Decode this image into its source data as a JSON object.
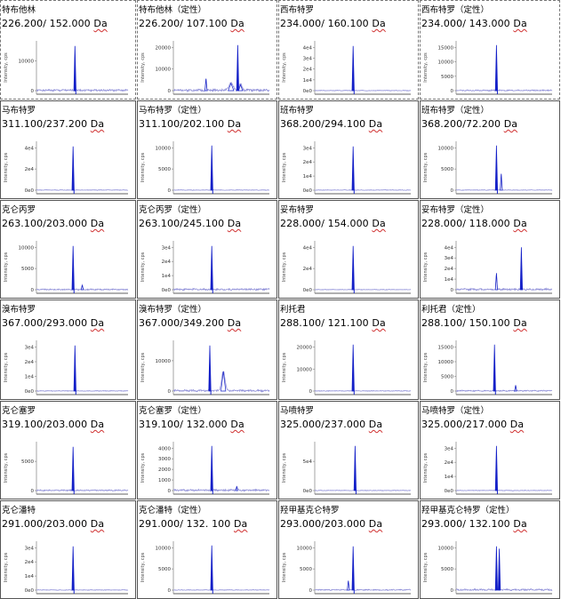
{
  "colors": {
    "peak": "#1420c8",
    "trace": "#8f8fd8",
    "axis": "#808080",
    "border": "#555555"
  },
  "y_axis_label": "Intensity, cps",
  "chart_data": [
    {
      "type": "line",
      "compound": "特布他林",
      "transition": "226.200/ 152.000",
      "unit": "Da",
      "yticks": [
        "0",
        "10000"
      ],
      "peaks": [
        {
          "x": 0.42,
          "h": 0.93,
          "w": 0.006
        }
      ],
      "dips": [
        0.43
      ],
      "noise": 0.03
    },
    {
      "type": "line",
      "compound": "特布他林（定性）",
      "transition": "226.200/ 107.100",
      "unit": "Da",
      "yticks": [
        "0",
        "10000",
        "20000"
      ],
      "peaks": [
        {
          "x": 0.34,
          "h": 0.25,
          "w": 0.006
        },
        {
          "x": 0.6,
          "h": 0.15,
          "w": 0.03
        },
        {
          "x": 0.67,
          "h": 0.95,
          "w": 0.008
        },
        {
          "x": 0.7,
          "h": 0.12,
          "w": 0.02
        }
      ],
      "dips": [],
      "noise": 0.04
    },
    {
      "type": "line",
      "compound": "西布特罗",
      "transition": "234.000/ 160.100",
      "unit": "Da",
      "yticks": [
        "0e0",
        "1e4",
        "2e4",
        "3e4",
        "4e4"
      ],
      "peaks": [
        {
          "x": 0.4,
          "h": 0.93,
          "w": 0.006
        }
      ],
      "dips": [
        0.41
      ],
      "noise": 0.01
    },
    {
      "type": "line",
      "compound": "西布特罗（定性）",
      "transition": "234.000/ 143.000",
      "unit": "Da",
      "yticks": [
        "0",
        "5000",
        "10000",
        "15000"
      ],
      "peaks": [
        {
          "x": 0.42,
          "h": 0.95,
          "w": 0.006
        }
      ],
      "dips": [
        0.43
      ],
      "noise": 0.02
    },
    {
      "type": "line",
      "compound": "马布特罗",
      "transition": "311.100/237.200",
      "unit": "Da",
      "yticks": [
        "0e0",
        "2e4",
        "4e4"
      ],
      "peaks": [
        {
          "x": 0.4,
          "h": 0.93,
          "w": 0.006
        }
      ],
      "dips": [
        0.41
      ],
      "noise": 0.01
    },
    {
      "type": "line",
      "compound": "马布特罗（定性）",
      "transition": "311.100/202.100",
      "unit": "Da",
      "yticks": [
        "0",
        "5000",
        "10000"
      ],
      "peaks": [
        {
          "x": 0.4,
          "h": 0.95,
          "w": 0.006
        }
      ],
      "dips": [
        0.41
      ],
      "noise": 0.01
    },
    {
      "type": "line",
      "compound": "班布特罗",
      "transition": "368.200/294.100",
      "unit": "Da",
      "yticks": [
        "0e0",
        "1e4",
        "2e4",
        "3e4"
      ],
      "peaks": [
        {
          "x": 0.4,
          "h": 0.93,
          "w": 0.006
        }
      ],
      "dips": [
        0.41
      ],
      "noise": 0.01
    },
    {
      "type": "line",
      "compound": "班布特罗（定性）",
      "transition": "368.200/72.200",
      "unit": "Da",
      "yticks": [
        "0",
        "5000",
        "10000"
      ],
      "peaks": [
        {
          "x": 0.42,
          "h": 0.95,
          "w": 0.006
        },
        {
          "x": 0.47,
          "h": 0.35,
          "w": 0.005
        }
      ],
      "dips": [
        0.43
      ],
      "noise": 0.01
    },
    {
      "type": "line",
      "compound": "克仑丙罗",
      "transition": "263.100/203.000",
      "unit": "Da",
      "yticks": [
        "0",
        "5000",
        "10000"
      ],
      "peaks": [
        {
          "x": 0.4,
          "h": 0.93,
          "w": 0.006
        },
        {
          "x": 0.5,
          "h": 0.1,
          "w": 0.006
        }
      ],
      "dips": [
        0.41
      ],
      "noise": 0.02
    },
    {
      "type": "line",
      "compound": "克仑丙罗（定性）",
      "transition": "263.100/245.100",
      "unit": "Da",
      "yticks": [
        "0e0",
        "1e4",
        "2e4",
        "3e4"
      ],
      "peaks": [
        {
          "x": 0.4,
          "h": 0.93,
          "w": 0.006
        }
      ],
      "dips": [
        0.41
      ],
      "noise": 0.03
    },
    {
      "type": "line",
      "compound": "妥布特罗",
      "transition": "228.000/ 154.000",
      "unit": "Da",
      "yticks": [
        "0e0",
        "2e4",
        "4e4"
      ],
      "peaks": [
        {
          "x": 0.4,
          "h": 0.93,
          "w": 0.006
        }
      ],
      "dips": [
        0.41
      ],
      "noise": 0.01
    },
    {
      "type": "line",
      "compound": "妥布特罗（定性）",
      "transition": "228.000/ 118.000",
      "unit": "Da",
      "yticks": [
        "0",
        "1e4",
        "2e4",
        "3e4",
        "4e4"
      ],
      "peaks": [
        {
          "x": 0.42,
          "h": 0.35,
          "w": 0.006
        },
        {
          "x": 0.68,
          "h": 0.9,
          "w": 0.01
        }
      ],
      "dips": [],
      "noise": 0.03
    },
    {
      "type": "line",
      "compound": "溴布特罗",
      "transition": "367.000/293.000",
      "unit": "Da",
      "yticks": [
        "0e0",
        "1e4",
        "2e4",
        "3e4"
      ],
      "peaks": [
        {
          "x": 0.42,
          "h": 0.93,
          "w": 0.006
        }
      ],
      "dips": [
        0.43
      ],
      "noise": 0.01
    },
    {
      "type": "line",
      "compound": "溴布特罗（定性）",
      "transition": "367.000/349.200",
      "unit": "Da",
      "yticks": [
        "0",
        "10000"
      ],
      "peaks": [
        {
          "x": 0.38,
          "h": 0.93,
          "w": 0.006
        },
        {
          "x": 0.52,
          "h": 0.4,
          "w": 0.025
        }
      ],
      "dips": [
        0.39
      ],
      "noise": 0.03
    },
    {
      "type": "line",
      "compound": "利托君",
      "transition": "288.100/ 121.100",
      "unit": "Da",
      "yticks": [
        "0",
        "10000",
        "20000"
      ],
      "peaks": [
        {
          "x": 0.4,
          "h": 0.95,
          "w": 0.006
        }
      ],
      "dips": [
        0.41
      ],
      "noise": 0.01
    },
    {
      "type": "line",
      "compound": "利托君（定性）",
      "transition": "288.100/ 150.100",
      "unit": "Da",
      "yticks": [
        "0",
        "5000",
        "10000",
        "15000"
      ],
      "peaks": [
        {
          "x": 0.4,
          "h": 0.95,
          "w": 0.006
        },
        {
          "x": 0.62,
          "h": 0.12,
          "w": 0.006
        }
      ],
      "dips": [
        0.41
      ],
      "noise": 0.02
    },
    {
      "type": "line",
      "compound": "克仑塞罗",
      "transition": "319.100/203.000",
      "unit": "Da",
      "yticks": [
        "0",
        "5000"
      ],
      "peaks": [
        {
          "x": 0.4,
          "h": 0.93,
          "w": 0.006
        }
      ],
      "dips": [
        0.41
      ],
      "noise": 0.02
    },
    {
      "type": "line",
      "compound": "克仑塞罗（定性）",
      "transition": "319.100/ 132.000",
      "unit": "Da",
      "yticks": [
        "0",
        "1000",
        "2000",
        "3000",
        "4000"
      ],
      "peaks": [
        {
          "x": 0.4,
          "h": 0.95,
          "w": 0.006
        },
        {
          "x": 0.66,
          "h": 0.08,
          "w": 0.01
        }
      ],
      "dips": [
        0.41
      ],
      "noise": 0.03
    },
    {
      "type": "line",
      "compound": "马喷特罗",
      "transition": "325.000/237.000",
      "unit": "Da",
      "yticks": [
        "0e0",
        "5e4"
      ],
      "peaks": [
        {
          "x": 0.42,
          "h": 0.95,
          "w": 0.006
        }
      ],
      "dips": [
        0.43
      ],
      "noise": 0.01
    },
    {
      "type": "line",
      "compound": "马喷特罗（定性）",
      "transition": "325.000/217.000",
      "unit": "Da",
      "yticks": [
        "0e0",
        "1e4",
        "2e4",
        "3e4"
      ],
      "peaks": [
        {
          "x": 0.42,
          "h": 0.95,
          "w": 0.006
        }
      ],
      "dips": [
        0.43
      ],
      "noise": 0.01
    },
    {
      "type": "line",
      "compound": "克仑潘特",
      "transition": "291.000/203.000",
      "unit": "Da",
      "yticks": [
        "0e0",
        "1e4",
        "2e4",
        "3e4"
      ],
      "peaks": [
        {
          "x": 0.4,
          "h": 0.93,
          "w": 0.006
        }
      ],
      "dips": [
        0.41
      ],
      "noise": 0.01
    },
    {
      "type": "line",
      "compound": "克仑潘特（定性）",
      "transition": "291.000/ 132. 100",
      "unit": "Da",
      "yticks": [
        "0",
        "5000",
        "10000"
      ],
      "peaks": [
        {
          "x": 0.4,
          "h": 0.95,
          "w": 0.006
        }
      ],
      "dips": [
        0.41
      ],
      "noise": 0.01
    },
    {
      "type": "line",
      "compound": "羟甲基克仑特罗",
      "transition": "293.000/203.000",
      "unit": "Da",
      "yticks": [
        "0",
        "5000",
        "10000"
      ],
      "peaks": [
        {
          "x": 0.35,
          "h": 0.2,
          "w": 0.006
        },
        {
          "x": 0.4,
          "h": 0.93,
          "w": 0.006
        }
      ],
      "dips": [
        0.41
      ],
      "noise": 0.02
    },
    {
      "type": "line",
      "compound": "羟甲基克仑特罗（定性）",
      "transition": "293.000/ 132.100",
      "unit": "Da",
      "yticks": [
        "0",
        "5000",
        "10000"
      ],
      "peaks": [
        {
          "x": 0.42,
          "h": 0.93,
          "w": 0.008
        },
        {
          "x": 0.45,
          "h": 0.88,
          "w": 0.006
        }
      ],
      "dips": [],
      "noise": 0.03
    }
  ]
}
